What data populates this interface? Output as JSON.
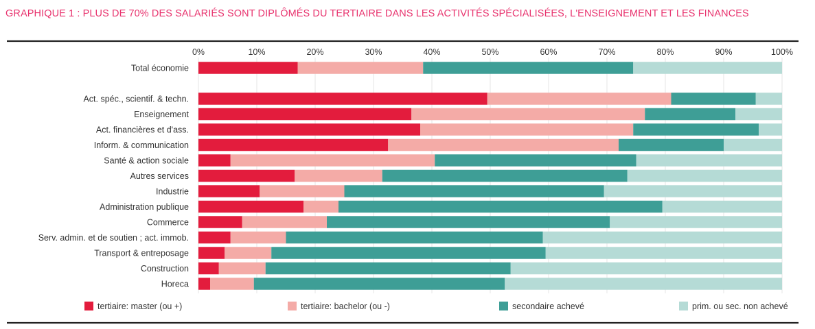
{
  "chart_data": {
    "type": "bar",
    "orientation": "horizontal",
    "stacked": true,
    "title": "GRAPHIQUE 1 : PLUS DE 70% DES SALARIÉS SONT DIPLÔMÉS DU TERTIAIRE DANS LES ACTIVITÉS SPÉCIALISÉES, L'ENSEIGNEMENT ET LES FINANCES",
    "xlim": [
      0,
      100
    ],
    "x_ticks": [
      "0%",
      "10%",
      "20%",
      "30%",
      "40%",
      "50%",
      "60%",
      "70%",
      "80%",
      "90%",
      "100%"
    ],
    "x_tick_position": "top",
    "legend_position": "bottom",
    "categories": [
      "Total économie",
      "Act. spéc., scientif. & techn.",
      "Enseignement",
      "Act. financières et d'ass.",
      "Inform. & communication",
      "Santé & action sociale",
      "Autres services",
      "Industrie",
      "Administration publique",
      "Commerce",
      "Serv. admin. et de soutien ; act. immob.",
      "Transport & entreposage",
      "Construction",
      "Horeca"
    ],
    "series": [
      {
        "name": "tertiaire: master (ou +)",
        "color": "#e31c3d",
        "values": [
          17,
          49.5,
          36.5,
          38,
          32.5,
          5.5,
          16.5,
          10.5,
          18,
          7.5,
          5.5,
          4.5,
          3.5,
          2
        ]
      },
      {
        "name": "tertiaire: bachelor (ou -)",
        "color": "#f4aba7",
        "values": [
          21.5,
          31.5,
          40,
          36.5,
          39.5,
          35,
          15,
          14.5,
          6,
          14.5,
          9.5,
          8,
          8,
          7.5
        ]
      },
      {
        "name": "secondaire achevé",
        "color": "#3e9e96",
        "values": [
          36,
          14.5,
          15.5,
          21.5,
          18,
          34.5,
          42,
          44.5,
          55.5,
          48.5,
          44,
          47,
          42,
          43
        ]
      },
      {
        "name": "prim. ou sec. non achevé",
        "color": "#b5dbd6",
        "values": [
          25.5,
          4.5,
          8,
          4,
          10,
          25,
          26.5,
          30.5,
          20.5,
          29.5,
          41,
          40.5,
          46.5,
          47.5
        ]
      }
    ]
  }
}
